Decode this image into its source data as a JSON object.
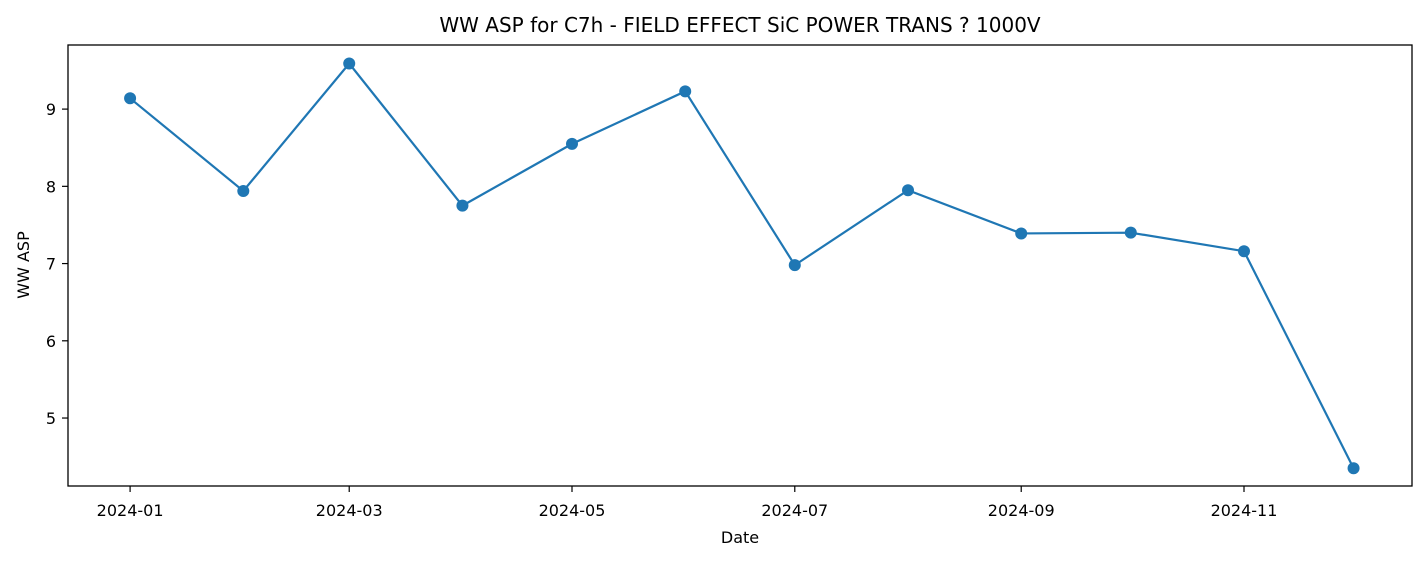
{
  "chart_data": {
    "type": "line",
    "title": "WW ASP for C7h - FIELD EFFECT SiC POWER TRANS ? 1000V",
    "xlabel": "Date",
    "ylabel": "WW ASP",
    "x_ticks": [
      "2024-01",
      "2024-03",
      "2024-05",
      "2024-07",
      "2024-09",
      "2024-11"
    ],
    "y_ticks": [
      5,
      6,
      7,
      8,
      9
    ],
    "series": [
      {
        "color": "#1f77b4",
        "x": [
          "2024-01-01",
          "2024-02-01",
          "2024-03-01",
          "2024-04-01",
          "2024-05-01",
          "2024-06-01",
          "2024-07-01",
          "2024-08-01",
          "2024-09-01",
          "2024-10-01",
          "2024-11-01",
          "2024-12-01"
        ],
        "values": [
          9.14,
          7.94,
          9.59,
          7.75,
          8.55,
          9.23,
          6.98,
          7.95,
          7.39,
          7.4,
          7.16,
          4.35
        ]
      }
    ],
    "ylim": [
      4.12,
      9.83
    ],
    "xlim": [
      "2023-12-15",
      "2024-12-17"
    ],
    "grid": false,
    "marker": "circle"
  }
}
